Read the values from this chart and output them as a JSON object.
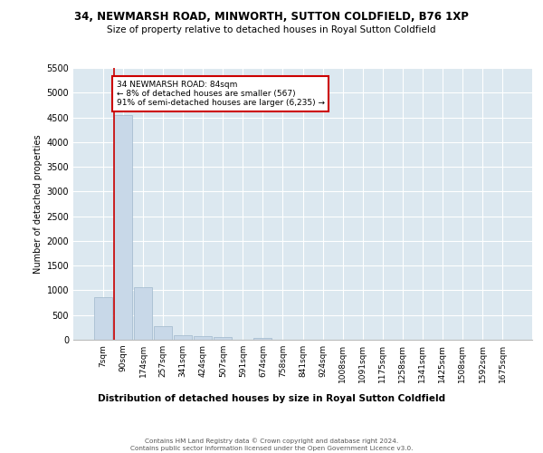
{
  "title_line1": "34, NEWMARSH ROAD, MINWORTH, SUTTON COLDFIELD, B76 1XP",
  "title_line2": "Size of property relative to detached houses in Royal Sutton Coldfield",
  "xlabel": "Distribution of detached houses by size in Royal Sutton Coldfield",
  "ylabel": "Number of detached properties",
  "footer_line1": "Contains HM Land Registry data © Crown copyright and database right 2024.",
  "footer_line2": "Contains public sector information licensed under the Open Government Licence v3.0.",
  "annotation_line1": "34 NEWMARSH ROAD: 84sqm",
  "annotation_line2": "← 8% of detached houses are smaller (567)",
  "annotation_line3": "91% of semi-detached houses are larger (6,235) →",
  "categories": [
    "7sqm",
    "90sqm",
    "174sqm",
    "257sqm",
    "341sqm",
    "424sqm",
    "507sqm",
    "591sqm",
    "674sqm",
    "758sqm",
    "841sqm",
    "924sqm",
    "1008sqm",
    "1091sqm",
    "1175sqm",
    "1258sqm",
    "1341sqm",
    "1425sqm",
    "1508sqm",
    "1592sqm",
    "1675sqm"
  ],
  "values": [
    870,
    4550,
    1070,
    275,
    90,
    75,
    50,
    0,
    40,
    0,
    0,
    0,
    0,
    0,
    0,
    0,
    0,
    0,
    0,
    0,
    0
  ],
  "bar_color": "#c8d8e8",
  "bar_edge_color": "#a0b8cc",
  "highlight_line_color": "#cc0000",
  "annotation_box_facecolor": "#ffffff",
  "annotation_box_edgecolor": "#cc0000",
  "background_color": "#dce8f0",
  "ylim": [
    0,
    5500
  ],
  "yticks": [
    0,
    500,
    1000,
    1500,
    2000,
    2500,
    3000,
    3500,
    4000,
    4500,
    5000,
    5500
  ]
}
